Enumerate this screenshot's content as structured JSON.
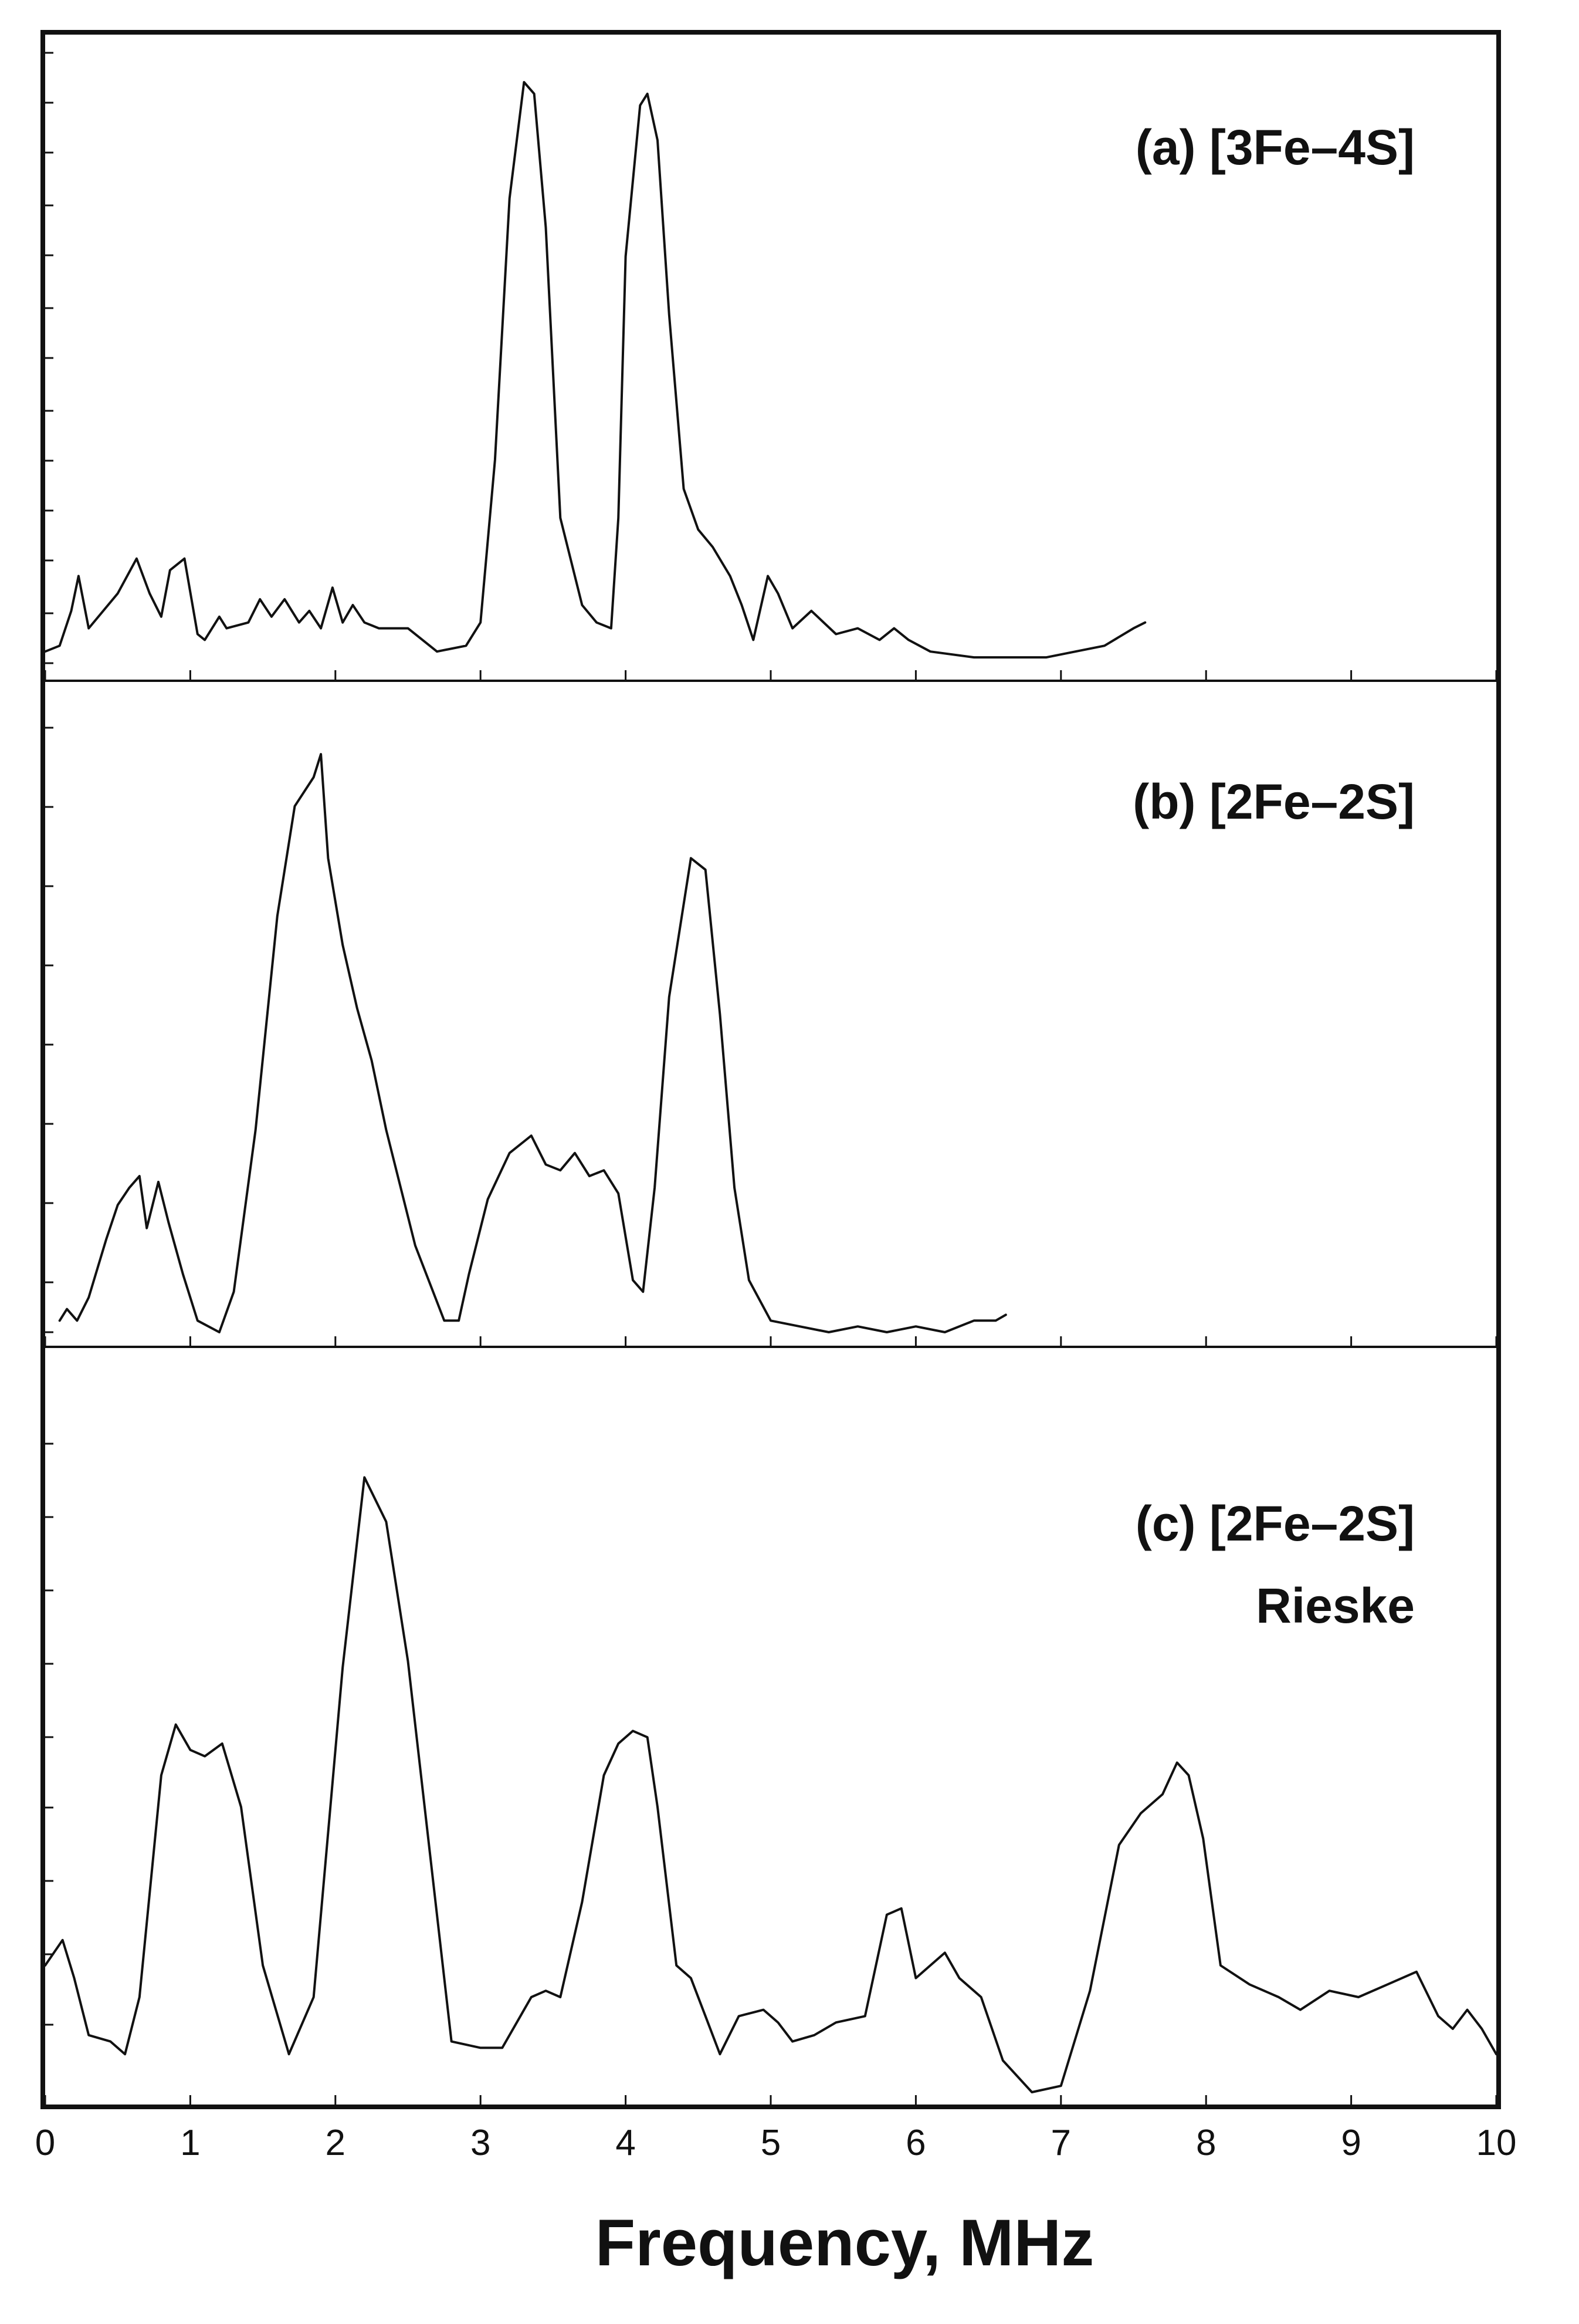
{
  "figure": {
    "xlabel": "Frequency, MHz",
    "colors": {
      "line": "#111111",
      "background": "#ffffff"
    }
  },
  "chart_data": [
    {
      "type": "line",
      "title": "(a) [3Fe–4S]",
      "xlim": [
        0,
        10
      ],
      "ylim": [
        0,
        1
      ],
      "grid": false,
      "xticks": [
        0,
        1,
        2,
        3,
        4,
        5,
        6,
        7,
        8,
        9,
        10
      ],
      "series": [
        {
          "x": [
            0.0,
            0.1,
            0.18,
            0.23,
            0.3,
            0.4,
            0.5,
            0.63,
            0.72,
            0.8,
            0.86,
            0.96,
            1.05,
            1.1,
            1.2,
            1.25,
            1.4,
            1.48,
            1.56,
            1.65,
            1.75,
            1.82,
            1.9,
            1.98,
            2.05,
            2.12,
            2.2,
            2.3,
            2.5,
            2.7,
            2.9,
            3.0,
            3.1,
            3.2,
            3.3,
            3.37,
            3.45,
            3.55,
            3.7,
            3.8,
            3.9,
            3.95,
            4.0,
            4.1,
            4.15,
            4.22,
            4.3,
            4.4,
            4.5,
            4.6,
            4.72,
            4.8,
            4.88,
            4.98,
            5.05,
            5.15,
            5.28,
            5.45,
            5.6,
            5.75,
            5.85,
            5.95,
            6.1,
            6.4,
            6.7,
            6.9,
            7.1,
            7.3,
            7.5,
            7.58
          ],
          "y": [
            0.02,
            0.03,
            0.09,
            0.15,
            0.06,
            0.09,
            0.12,
            0.18,
            0.12,
            0.08,
            0.16,
            0.18,
            0.05,
            0.04,
            0.08,
            0.06,
            0.07,
            0.11,
            0.08,
            0.11,
            0.07,
            0.09,
            0.06,
            0.13,
            0.07,
            0.1,
            0.07,
            0.06,
            0.06,
            0.02,
            0.03,
            0.07,
            0.35,
            0.8,
            1.0,
            0.98,
            0.75,
            0.25,
            0.1,
            0.07,
            0.06,
            0.25,
            0.7,
            0.96,
            0.98,
            0.9,
            0.6,
            0.3,
            0.23,
            0.2,
            0.15,
            0.1,
            0.04,
            0.15,
            0.12,
            0.06,
            0.09,
            0.05,
            0.06,
            0.04,
            0.06,
            0.04,
            0.02,
            0.01,
            0.01,
            0.01,
            0.02,
            0.03,
            0.06,
            0.07
          ]
        }
      ]
    },
    {
      "type": "line",
      "title": "(b) [2Fe–2S]",
      "xlim": [
        0,
        10
      ],
      "ylim": [
        0,
        1
      ],
      "grid": false,
      "xticks": [
        0,
        1,
        2,
        3,
        4,
        5,
        6,
        7,
        8,
        9,
        10
      ],
      "series": [
        {
          "x": [
            0.1,
            0.15,
            0.22,
            0.3,
            0.42,
            0.5,
            0.58,
            0.65,
            0.7,
            0.78,
            0.85,
            0.95,
            1.05,
            1.2,
            1.3,
            1.45,
            1.6,
            1.72,
            1.85,
            1.9,
            1.95,
            2.05,
            2.15,
            2.25,
            2.35,
            2.55,
            2.75,
            2.85,
            2.92,
            3.05,
            3.2,
            3.35,
            3.45,
            3.55,
            3.65,
            3.75,
            3.85,
            3.95,
            4.05,
            4.12,
            4.2,
            4.3,
            4.45,
            4.55,
            4.65,
            4.75,
            4.85,
            5.0,
            5.2,
            5.4,
            5.6,
            5.8,
            6.0,
            6.2,
            6.4,
            6.55,
            6.62
          ],
          "y": [
            0.02,
            0.04,
            0.02,
            0.06,
            0.16,
            0.22,
            0.25,
            0.27,
            0.18,
            0.26,
            0.19,
            0.1,
            0.02,
            0.0,
            0.07,
            0.35,
            0.72,
            0.91,
            0.96,
            1.0,
            0.82,
            0.67,
            0.56,
            0.47,
            0.35,
            0.15,
            0.02,
            0.02,
            0.1,
            0.23,
            0.31,
            0.34,
            0.29,
            0.28,
            0.31,
            0.27,
            0.28,
            0.24,
            0.09,
            0.07,
            0.25,
            0.58,
            0.82,
            0.8,
            0.55,
            0.25,
            0.09,
            0.02,
            0.01,
            0.0,
            0.01,
            0.0,
            0.01,
            0.0,
            0.02,
            0.02,
            0.03
          ]
        }
      ]
    },
    {
      "type": "line",
      "title": "(c) [2Fe–2S]",
      "subtitle": "Rieske",
      "xlim": [
        0,
        10
      ],
      "ylim": [
        0,
        1
      ],
      "grid": false,
      "xticks": [
        0,
        1,
        2,
        3,
        4,
        5,
        6,
        7,
        8,
        9,
        10
      ],
      "series": [
        {
          "x": [
            0.0,
            0.12,
            0.2,
            0.3,
            0.45,
            0.55,
            0.65,
            0.8,
            0.9,
            1.0,
            1.1,
            1.22,
            1.35,
            1.5,
            1.68,
            1.85,
            2.05,
            2.2,
            2.35,
            2.5,
            2.65,
            2.8,
            3.0,
            3.15,
            3.35,
            3.45,
            3.55,
            3.7,
            3.85,
            3.95,
            4.05,
            4.15,
            4.22,
            4.35,
            4.45,
            4.55,
            4.65,
            4.78,
            4.95,
            5.05,
            5.15,
            5.3,
            5.45,
            5.65,
            5.8,
            5.9,
            6.0,
            6.1,
            6.2,
            6.3,
            6.45,
            6.6,
            6.8,
            7.0,
            7.2,
            7.4,
            7.55,
            7.7,
            7.8,
            7.88,
            7.98,
            8.1,
            8.3,
            8.5,
            8.65,
            8.85,
            9.05,
            9.25,
            9.45,
            9.6,
            9.7,
            9.8,
            9.9,
            10.0
          ],
          "y": [
            0.2,
            0.24,
            0.18,
            0.09,
            0.08,
            0.06,
            0.15,
            0.5,
            0.58,
            0.54,
            0.53,
            0.55,
            0.45,
            0.2,
            0.06,
            0.15,
            0.67,
            0.97,
            0.9,
            0.68,
            0.38,
            0.08,
            0.07,
            0.07,
            0.15,
            0.16,
            0.15,
            0.3,
            0.5,
            0.55,
            0.57,
            0.56,
            0.45,
            0.2,
            0.18,
            0.12,
            0.06,
            0.12,
            0.13,
            0.11,
            0.08,
            0.09,
            0.11,
            0.12,
            0.28,
            0.29,
            0.18,
            0.2,
            0.22,
            0.18,
            0.15,
            0.05,
            0.0,
            0.01,
            0.16,
            0.39,
            0.44,
            0.47,
            0.52,
            0.5,
            0.4,
            0.2,
            0.17,
            0.15,
            0.13,
            0.16,
            0.15,
            0.17,
            0.19,
            0.12,
            0.1,
            0.13,
            0.1,
            0.06
          ]
        }
      ]
    }
  ]
}
